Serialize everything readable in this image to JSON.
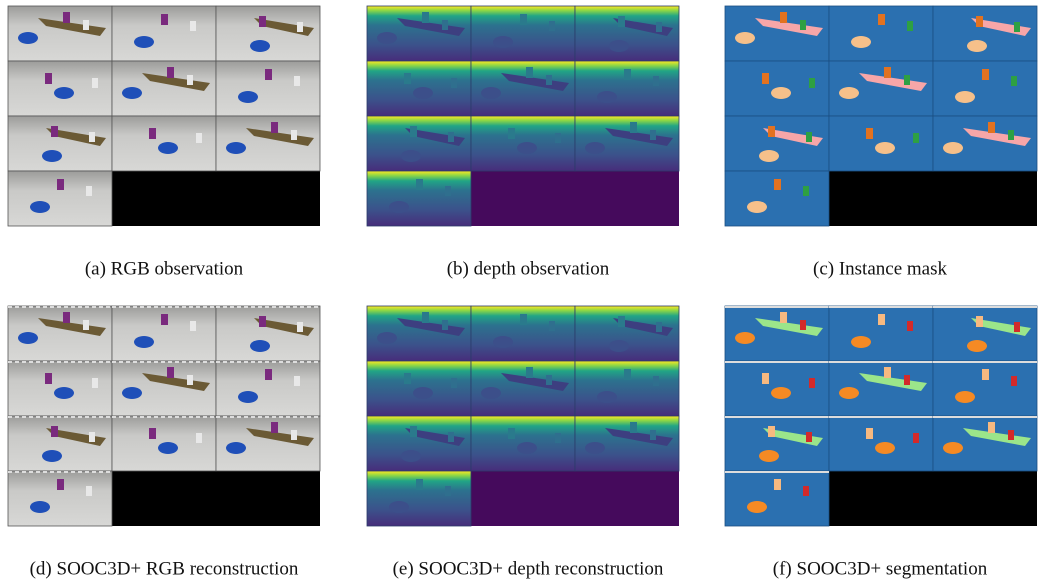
{
  "figure": {
    "panels": [
      {
        "caption": "(a) RGB observation"
      },
      {
        "caption": "(b) depth observation"
      },
      {
        "caption": "(c) Instance mask"
      },
      {
        "caption": "(d) SOOC3D+ RGB reconstruction"
      },
      {
        "caption": "(e) SOOC3D+ depth reconstruction"
      },
      {
        "caption": "(f) SOOC3D+ segmentation"
      }
    ]
  }
}
